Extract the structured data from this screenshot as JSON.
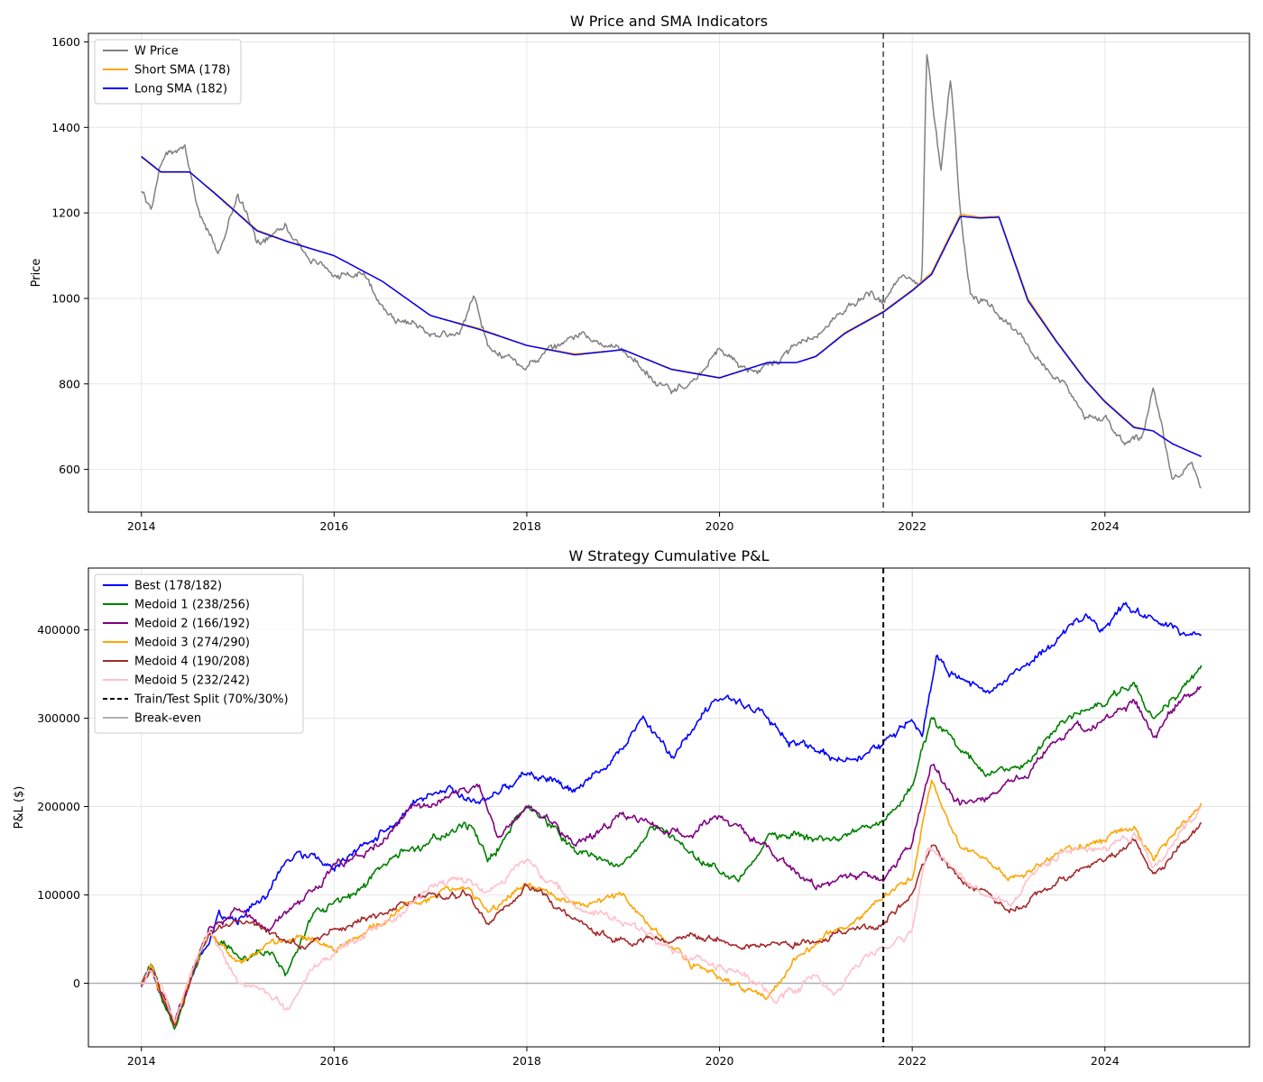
{
  "chart_data": [
    {
      "type": "line",
      "title": "W Price and SMA Indicators",
      "xlabel": "",
      "ylabel": "Price",
      "xlim": [
        2013.45,
        2025.5
      ],
      "ylim": [
        500,
        1620
      ],
      "xticks": [
        2014,
        2016,
        2018,
        2020,
        2022,
        2024
      ],
      "yticks": [
        600,
        800,
        1000,
        1200,
        1400,
        1600
      ],
      "grid": true,
      "legend_position": "top-left",
      "vline": {
        "x": 2021.7,
        "style": "dashed",
        "color": "#404040"
      },
      "series": [
        {
          "name": "W Price",
          "color": "#808080",
          "noise": 12,
          "x": [
            2014.0,
            2014.1,
            2014.2,
            2014.3,
            2014.45,
            2014.6,
            2014.8,
            2015.0,
            2015.2,
            2015.5,
            2015.7,
            2016.0,
            2016.3,
            2016.6,
            2017.0,
            2017.3,
            2017.45,
            2017.6,
            2018.0,
            2018.3,
            2018.6,
            2019.0,
            2019.3,
            2019.5,
            2019.8,
            2020.0,
            2020.3,
            2020.6,
            2020.9,
            2021.2,
            2021.5,
            2021.7,
            2021.9,
            2022.1,
            2022.15,
            2022.3,
            2022.4,
            2022.5,
            2022.6,
            2022.8,
            2023.0,
            2023.3,
            2023.6,
            2023.8,
            2024.0,
            2024.2,
            2024.4,
            2024.5,
            2024.7,
            2024.9,
            2025.0
          ],
          "values": [
            1250,
            1210,
            1320,
            1340,
            1360,
            1200,
            1100,
            1250,
            1130,
            1180,
            1100,
            1060,
            1050,
            960,
            920,
            910,
            1010,
            890,
            840,
            880,
            920,
            870,
            820,
            780,
            820,
            880,
            830,
            850,
            900,
            950,
            1010,
            990,
            1050,
            1030,
            1570,
            1300,
            1520,
            1200,
            1020,
            990,
            940,
            860,
            800,
            730,
            720,
            650,
            680,
            780,
            580,
            620,
            560
          ]
        },
        {
          "name": "Short SMA (178)",
          "color": "#ffa500",
          "noise": 0,
          "x": [
            2014.0,
            2014.2,
            2014.5,
            2014.8,
            2015.2,
            2015.5,
            2016.0,
            2016.5,
            2017.0,
            2017.5,
            2018.0,
            2018.5,
            2019.0,
            2019.5,
            2020.0,
            2020.5,
            2020.8,
            2021.0,
            2021.3,
            2021.7,
            2022.0,
            2022.2,
            2022.5,
            2022.7,
            2022.9,
            2023.2,
            2023.5,
            2023.8,
            2024.0,
            2024.3,
            2024.5,
            2024.7,
            2025.0
          ],
          "values": [
            1330,
            1295,
            1295,
            1240,
            1160,
            1135,
            1100,
            1040,
            960,
            930,
            890,
            870,
            880,
            835,
            815,
            850,
            850,
            865,
            920,
            970,
            1020,
            1060,
            1197,
            1190,
            1192,
            1000,
            900,
            810,
            760,
            700,
            690,
            660,
            630
          ]
        },
        {
          "name": "Long SMA (182)",
          "color": "#0000ff",
          "noise": 0,
          "x": [
            2014.0,
            2014.2,
            2014.5,
            2014.8,
            2015.2,
            2015.5,
            2016.0,
            2016.5,
            2017.0,
            2017.5,
            2018.0,
            2018.5,
            2019.0,
            2019.5,
            2020.0,
            2020.5,
            2020.8,
            2021.0,
            2021.3,
            2021.7,
            2022.0,
            2022.2,
            2022.5,
            2022.7,
            2022.9,
            2023.2,
            2023.5,
            2023.8,
            2024.0,
            2024.3,
            2024.5,
            2024.7,
            2025.0
          ],
          "values": [
            1332,
            1296,
            1296,
            1238,
            1158,
            1134,
            1100,
            1040,
            960,
            928,
            890,
            868,
            880,
            834,
            814,
            850,
            850,
            864,
            918,
            968,
            1018,
            1056,
            1192,
            1188,
            1190,
            995,
            898,
            808,
            758,
            698,
            690,
            660,
            630
          ]
        }
      ]
    },
    {
      "type": "line",
      "title": "W Strategy Cumulative P&L",
      "xlabel": "",
      "ylabel": "P&L ($)",
      "xlim": [
        2013.45,
        2025.5
      ],
      "ylim": [
        -72000,
        470000
      ],
      "xticks": [
        2014,
        2016,
        2018,
        2020,
        2022,
        2024
      ],
      "yticks": [
        0,
        100000,
        200000,
        300000,
        400000
      ],
      "grid": true,
      "legend_position": "top-left",
      "vline": {
        "x": 2021.7,
        "style": "dashed",
        "color": "#000000",
        "label": "Train/Test Split (70%/30%)"
      },
      "hline": {
        "y": 0,
        "color": "#b0b0b0",
        "label": "Break-even"
      },
      "series": [
        {
          "name": "Best (178/182)",
          "color": "#0000ff",
          "noise": 6000,
          "x": [
            2014.0,
            2014.1,
            2014.2,
            2014.35,
            2014.5,
            2014.7,
            2014.8,
            2015.0,
            2015.3,
            2015.6,
            2016.0,
            2016.4,
            2016.8,
            2017.2,
            2017.5,
            2018.0,
            2018.5,
            2018.9,
            2019.2,
            2019.5,
            2020.0,
            2020.4,
            2020.7,
            2021.0,
            2021.3,
            2021.7,
            2022.0,
            2022.1,
            2022.25,
            2022.5,
            2022.8,
            2023.2,
            2023.5,
            2023.8,
            2024.0,
            2024.2,
            2024.5,
            2024.8,
            2025.0
          ],
          "values": [
            0,
            20000,
            -10000,
            -45000,
            5000,
            50000,
            80000,
            70000,
            100000,
            150000,
            130000,
            160000,
            200000,
            220000,
            200000,
            240000,
            220000,
            250000,
            300000,
            260000,
            320000,
            310000,
            280000,
            260000,
            250000,
            270000,
            300000,
            280000,
            370000,
            340000,
            330000,
            360000,
            390000,
            410000,
            400000,
            430000,
            410000,
            400000,
            400000
          ]
        },
        {
          "name": "Medoid 1 (238/256)",
          "color": "#008000",
          "noise": 6000,
          "x": [
            2014.0,
            2014.1,
            2014.2,
            2014.35,
            2014.5,
            2014.7,
            2015.0,
            2015.3,
            2015.5,
            2015.8,
            2016.2,
            2016.6,
            2017.0,
            2017.4,
            2017.6,
            2018.0,
            2018.5,
            2019.0,
            2019.3,
            2019.8,
            2020.2,
            2020.5,
            2021.0,
            2021.4,
            2021.7,
            2022.0,
            2022.2,
            2022.5,
            2022.8,
            2023.2,
            2023.5,
            2024.0,
            2024.3,
            2024.5,
            2024.8,
            2025.0
          ],
          "values": [
            0,
            20000,
            -10000,
            -45000,
            5000,
            60000,
            30000,
            40000,
            10000,
            80000,
            100000,
            140000,
            160000,
            180000,
            140000,
            200000,
            150000,
            130000,
            180000,
            140000,
            120000,
            170000,
            160000,
            170000,
            180000,
            220000,
            300000,
            260000,
            240000,
            250000,
            290000,
            320000,
            340000,
            300000,
            330000,
            360000
          ]
        },
        {
          "name": "Medoid 2 (166/192)",
          "color": "#800080",
          "noise": 6000,
          "x": [
            2014.0,
            2014.1,
            2014.2,
            2014.35,
            2014.5,
            2014.7,
            2015.0,
            2015.3,
            2015.7,
            2016.0,
            2016.4,
            2016.8,
            2017.2,
            2017.5,
            2017.7,
            2018.0,
            2018.5,
            2019.0,
            2019.3,
            2019.7,
            2020.0,
            2020.5,
            2021.0,
            2021.3,
            2021.7,
            2022.0,
            2022.2,
            2022.5,
            2022.8,
            2023.2,
            2023.5,
            2024.0,
            2024.3,
            2024.5,
            2024.8,
            2025.0
          ],
          "values": [
            0,
            20000,
            -10000,
            -45000,
            5000,
            60000,
            80000,
            60000,
            100000,
            130000,
            150000,
            200000,
            210000,
            220000,
            160000,
            200000,
            160000,
            190000,
            180000,
            170000,
            190000,
            150000,
            110000,
            120000,
            120000,
            160000,
            250000,
            200000,
            210000,
            240000,
            280000,
            300000,
            320000,
            280000,
            320000,
            340000
          ]
        },
        {
          "name": "Medoid 3 (274/290)",
          "color": "#ffa500",
          "noise": 5000,
          "x": [
            2014.0,
            2014.1,
            2014.2,
            2014.35,
            2014.5,
            2014.7,
            2015.0,
            2015.3,
            2015.7,
            2016.0,
            2016.5,
            2017.0,
            2017.4,
            2017.6,
            2018.0,
            2018.5,
            2019.0,
            2019.3,
            2019.7,
            2020.0,
            2020.3,
            2020.5,
            2020.8,
            2021.2,
            2021.5,
            2021.7,
            2022.0,
            2022.2,
            2022.5,
            2022.8,
            2023.0,
            2023.3,
            2023.6,
            2024.0,
            2024.3,
            2024.5,
            2024.8,
            2025.0
          ],
          "values": [
            0,
            20000,
            -10000,
            -45000,
            5000,
            60000,
            20000,
            40000,
            50000,
            40000,
            70000,
            100000,
            110000,
            80000,
            110000,
            90000,
            100000,
            60000,
            20000,
            10000,
            -10000,
            -20000,
            30000,
            60000,
            80000,
            100000,
            120000,
            230000,
            150000,
            130000,
            120000,
            130000,
            150000,
            160000,
            180000,
            140000,
            180000,
            200000
          ]
        },
        {
          "name": "Medoid 4 (190/208)",
          "color": "#a52a2a",
          "noise": 5000,
          "x": [
            2014.0,
            2014.1,
            2014.2,
            2014.35,
            2014.5,
            2014.7,
            2015.0,
            2015.3,
            2015.7,
            2016.0,
            2016.5,
            2017.0,
            2017.4,
            2017.6,
            2018.0,
            2018.5,
            2019.0,
            2019.5,
            2020.0,
            2020.5,
            2021.0,
            2021.3,
            2021.7,
            2022.0,
            2022.2,
            2022.5,
            2022.8,
            2023.0,
            2023.3,
            2023.6,
            2024.0,
            2024.3,
            2024.5,
            2024.8,
            2025.0
          ],
          "values": [
            0,
            20000,
            -10000,
            -45000,
            5000,
            60000,
            70000,
            60000,
            40000,
            60000,
            80000,
            100000,
            100000,
            60000,
            110000,
            70000,
            50000,
            50000,
            50000,
            40000,
            50000,
            60000,
            70000,
            100000,
            160000,
            120000,
            100000,
            80000,
            100000,
            120000,
            140000,
            160000,
            120000,
            160000,
            185000
          ]
        },
        {
          "name": "Medoid 5 (232/242)",
          "color": "#ffc0cb",
          "noise": 6000,
          "x": [
            2014.0,
            2014.1,
            2014.2,
            2014.35,
            2014.5,
            2014.7,
            2015.0,
            2015.3,
            2015.5,
            2015.8,
            2016.2,
            2016.6,
            2017.0,
            2017.4,
            2017.6,
            2018.0,
            2018.5,
            2019.0,
            2019.5,
            2020.0,
            2020.3,
            2020.6,
            2021.0,
            2021.2,
            2021.5,
            2021.7,
            2022.0,
            2022.15,
            2022.5,
            2022.8,
            2023.0,
            2023.3,
            2023.6,
            2024.0,
            2024.3,
            2024.5,
            2024.8,
            2025.0
          ],
          "values": [
            0,
            20000,
            -10000,
            -45000,
            5000,
            60000,
            0,
            -5000,
            -30000,
            20000,
            50000,
            70000,
            110000,
            120000,
            100000,
            140000,
            90000,
            70000,
            40000,
            20000,
            10000,
            -20000,
            10000,
            -10000,
            30000,
            40000,
            60000,
            150000,
            120000,
            100000,
            90000,
            130000,
            150000,
            150000,
            170000,
            130000,
            170000,
            195000
          ]
        }
      ]
    }
  ]
}
